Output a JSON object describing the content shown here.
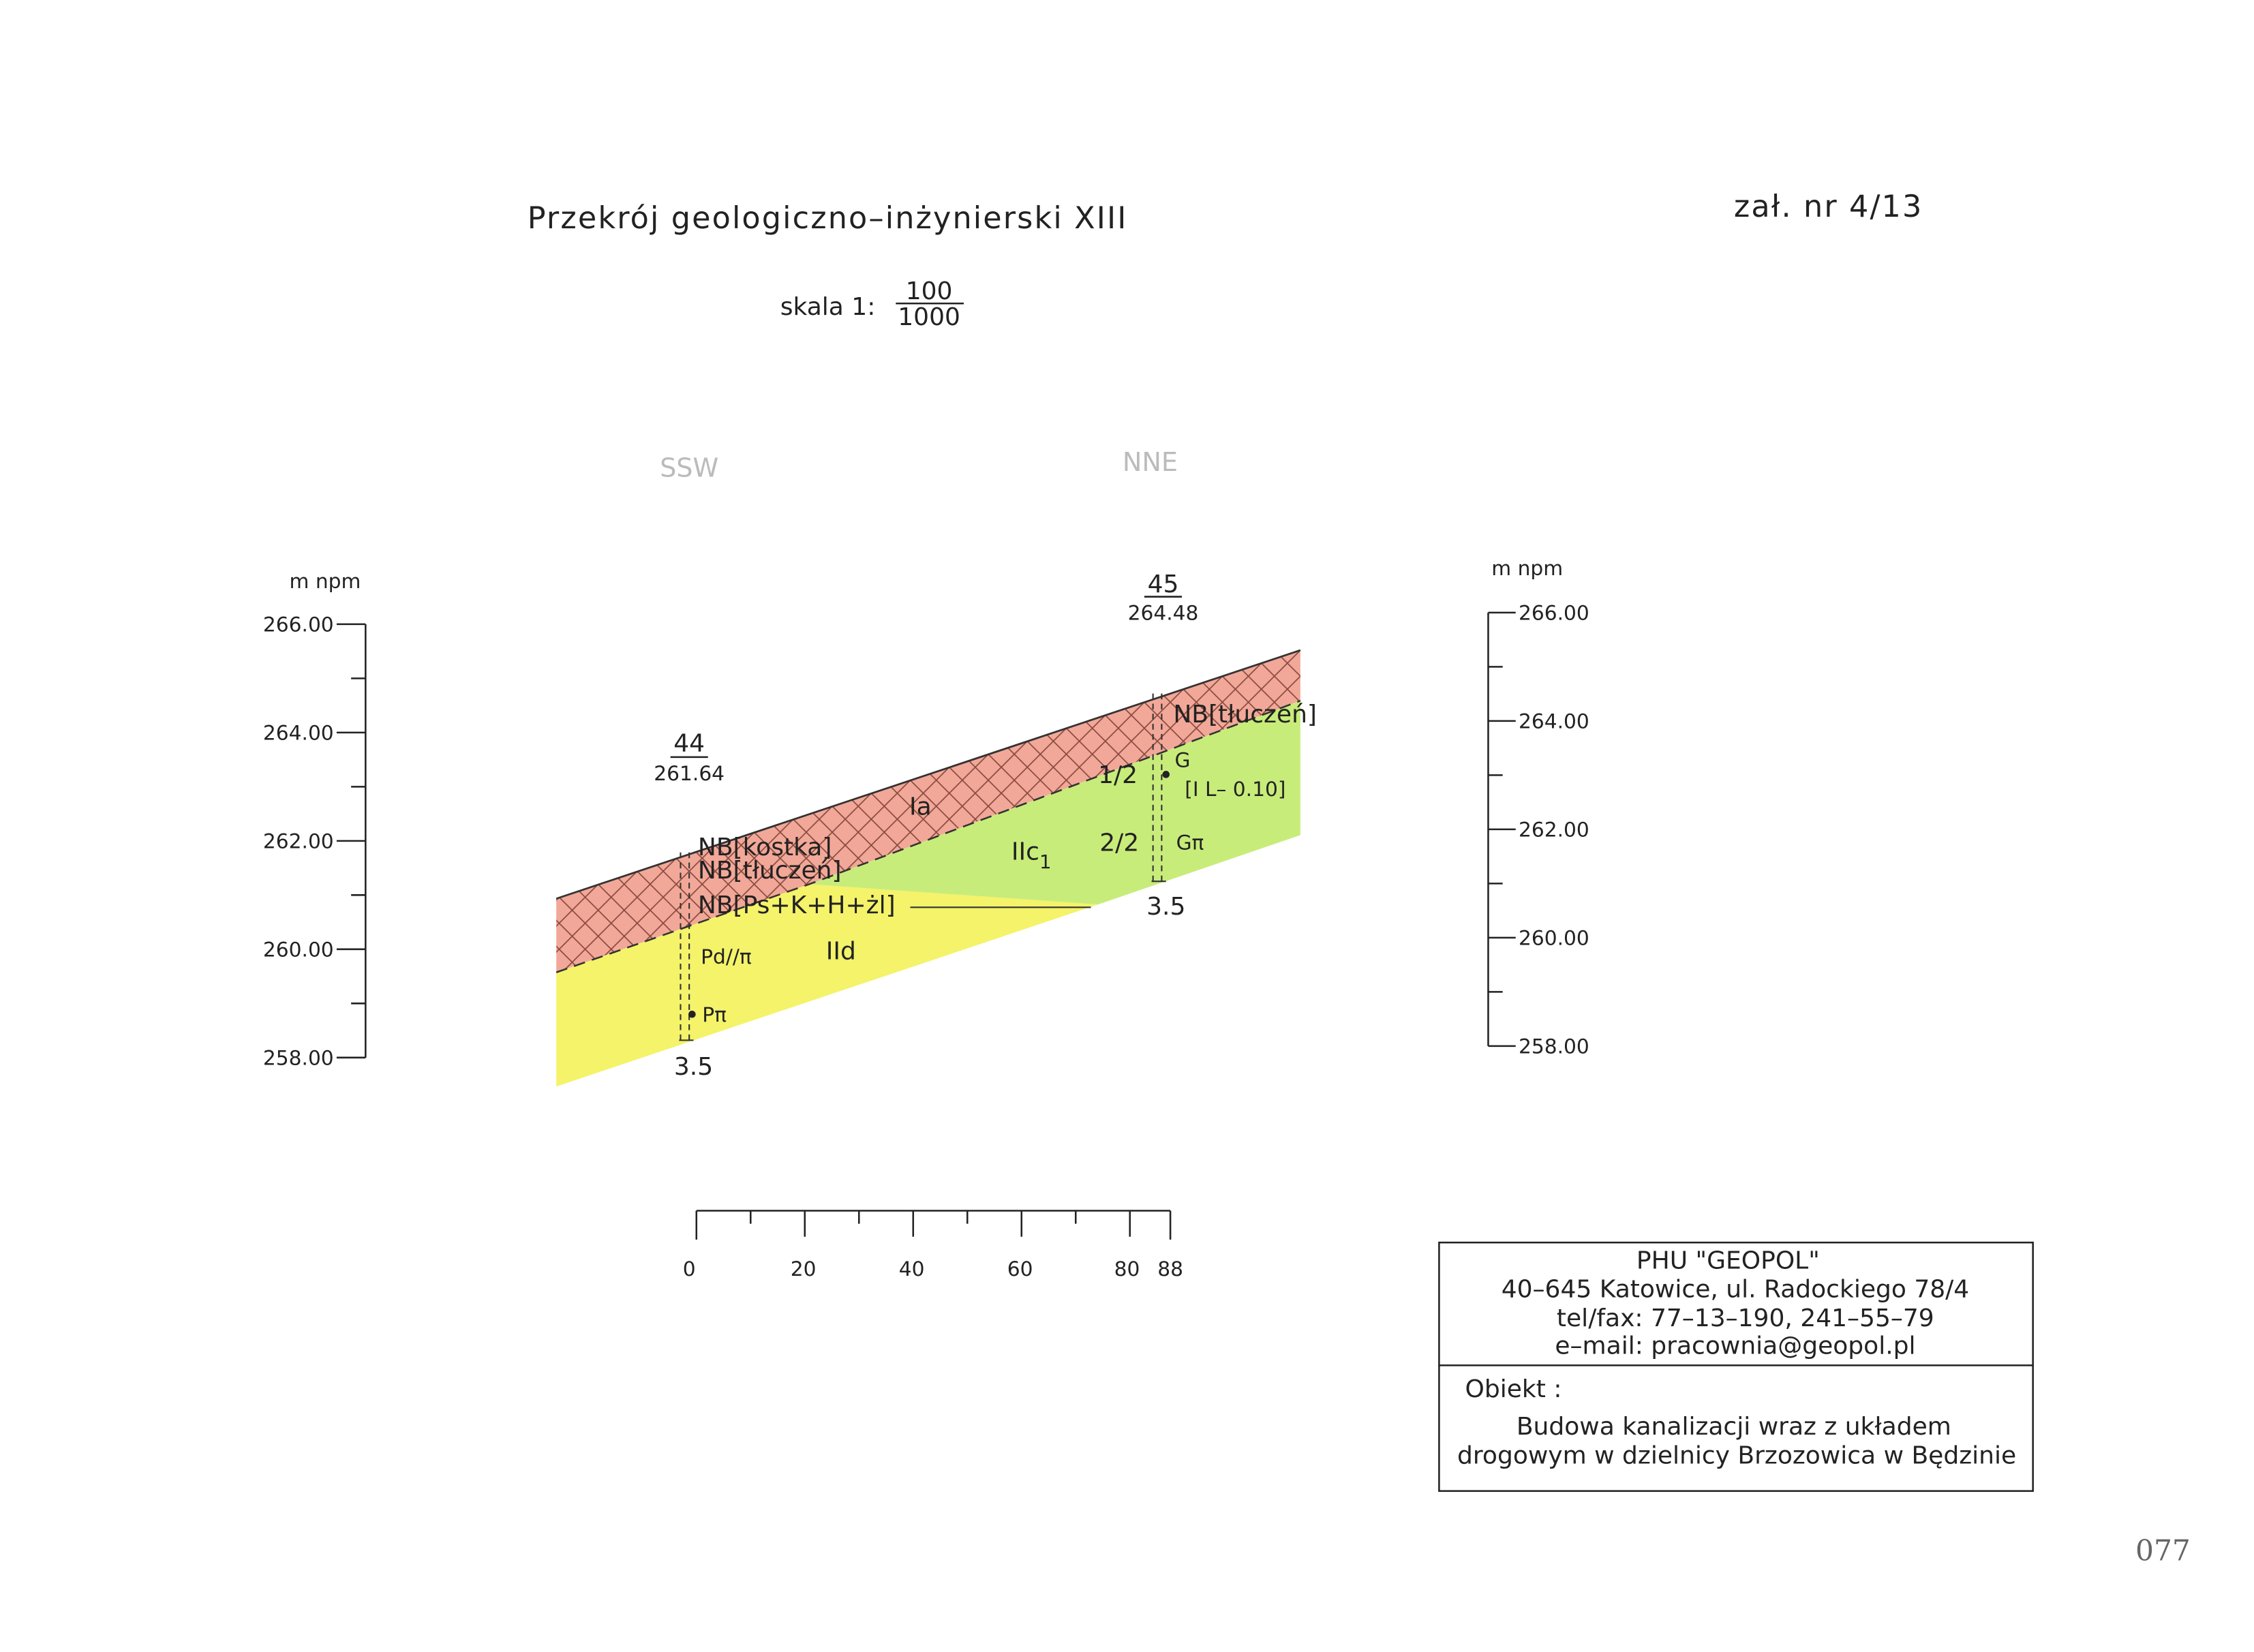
{
  "header": {
    "title": "Przekrój geologiczno–inżynierski XIII",
    "sheet": "zał. nr 4/13",
    "scale_prefix": "skala 1:",
    "scale_numerator": "100",
    "scale_denominator": "1000"
  },
  "directions": [
    "SSW",
    "NNE"
  ],
  "axes": {
    "left": {
      "unit": "m npm",
      "ticks": [
        "266.00",
        "264.00",
        "262.00",
        "260.00",
        "258.00"
      ]
    },
    "right": {
      "unit": "m npm",
      "ticks": [
        "266.00",
        "264.00",
        "262.00",
        "260.00",
        "258.00"
      ]
    }
  },
  "boreholes": [
    {
      "number": "44",
      "elevation": "261.64",
      "depth": "3.5"
    },
    {
      "number": "45",
      "elevation": "264.48",
      "depth": "3.5"
    }
  ],
  "labels": {
    "nb_kostka": "NB[kostka]",
    "nb_tluczen_1": "NB[tłuczeń]",
    "nb_ps": "NB[Ps+K+H+żl]",
    "pd": "Pd//π",
    "p_pi": "Pπ",
    "ia": "Ia",
    "iic": "IIc",
    "iic_sub": "1",
    "iid": "IId",
    "nb_tluczen_2": "NB[tłuczeń]",
    "one_two": "1/2",
    "two_two": "2/2",
    "g": "G",
    "il": "[I L– 0.10]",
    "g_pi": "Gπ"
  },
  "scale_bar": [
    "0",
    "20",
    "40",
    "60",
    "80",
    "88"
  ],
  "title_block": {
    "company": "PHU \"GEOPOL\"",
    "address": "40–645 Katowice, ul. Radockiego 78/4",
    "phone": "tel/fax: 77–13–190, 241–55–79",
    "email": "e–mail: pracownia@geopol.pl",
    "object_label": "Obiekt :",
    "object_line1": "Budowa kanalizacji wraz z układem",
    "object_line2": "drogowym w dzielnicy Brzozowica w Będzinie"
  },
  "sheet_number": "077"
}
